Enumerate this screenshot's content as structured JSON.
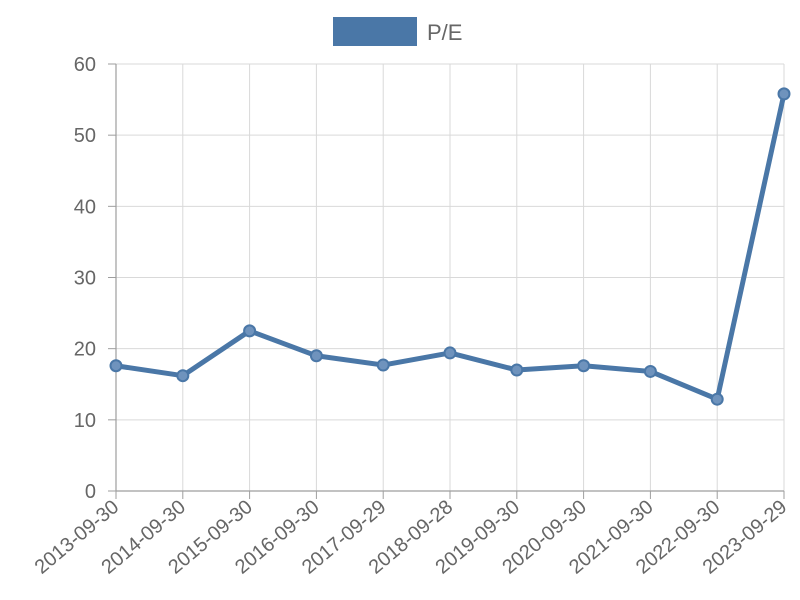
{
  "chart_data": {
    "type": "line",
    "categories": [
      "2013-09-30",
      "2014-09-30",
      "2015-09-30",
      "2016-09-30",
      "2017-09-29",
      "2018-09-28",
      "2019-09-30",
      "2020-09-30",
      "2021-09-30",
      "2022-09-30",
      "2023-09-29"
    ],
    "series": [
      {
        "name": "P/E",
        "values": [
          17.6,
          16.2,
          22.5,
          19.0,
          17.7,
          19.4,
          17.0,
          17.6,
          16.8,
          12.9,
          55.8
        ]
      }
    ],
    "title": "",
    "xlabel": "",
    "ylabel": "",
    "ylim": [
      0,
      60
    ],
    "yticks": [
      0,
      10,
      20,
      30,
      40,
      50,
      60
    ],
    "grid": true,
    "legend_position": "top-center",
    "colors": {
      "series": "#4a77a7",
      "point_fill": "#6f93bd"
    }
  }
}
